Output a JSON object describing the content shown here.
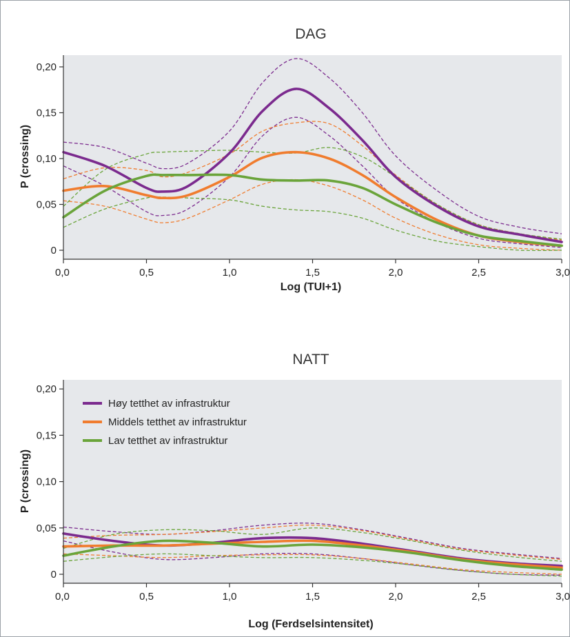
{
  "chart_data": [
    {
      "type": "line",
      "title": "DAG",
      "xlabel": "Log (TUI+1)",
      "ylabel": "P (crossing)",
      "xlim": [
        0,
        3
      ],
      "ylim": [
        0,
        0.21
      ],
      "xticks": [
        "0,0",
        "0,5",
        "1,0",
        "1,5",
        "2,0",
        "2,5",
        "3,0"
      ],
      "yticks": [
        "0",
        "0,05",
        "0,10",
        "0,15",
        "0,20"
      ],
      "grid": false,
      "background": "#e6e8eb",
      "series": [
        {
          "name": "Høy tetthet av infrastruktur",
          "color": "#7b2a8e",
          "x": [
            0.0,
            0.25,
            0.5,
            0.6,
            0.75,
            1.0,
            1.2,
            1.4,
            1.6,
            1.8,
            2.0,
            2.25,
            2.5,
            2.75,
            3.0
          ],
          "y": [
            0.107,
            0.092,
            0.068,
            0.064,
            0.07,
            0.106,
            0.152,
            0.176,
            0.155,
            0.12,
            0.08,
            0.048,
            0.026,
            0.017,
            0.009
          ],
          "lower": [
            0.092,
            0.07,
            0.042,
            0.038,
            0.045,
            0.08,
            0.125,
            0.145,
            0.125,
            0.092,
            0.057,
            0.03,
            0.013,
            0.007,
            0.003
          ],
          "upper": [
            0.118,
            0.112,
            0.095,
            0.089,
            0.095,
            0.13,
            0.183,
            0.209,
            0.188,
            0.15,
            0.103,
            0.065,
            0.037,
            0.025,
            0.018
          ]
        },
        {
          "name": "Middels tetthet av infrastruktur",
          "color": "#f07c2e",
          "x": [
            0.0,
            0.25,
            0.5,
            0.6,
            0.75,
            1.0,
            1.2,
            1.4,
            1.6,
            1.8,
            2.0,
            2.25,
            2.5,
            2.75,
            3.0
          ],
          "y": [
            0.065,
            0.07,
            0.06,
            0.057,
            0.06,
            0.08,
            0.101,
            0.107,
            0.1,
            0.082,
            0.058,
            0.033,
            0.016,
            0.009,
            0.005
          ],
          "lower": [
            0.054,
            0.048,
            0.034,
            0.03,
            0.035,
            0.055,
            0.072,
            0.077,
            0.07,
            0.055,
            0.035,
            0.017,
            0.006,
            0.002,
            0.0
          ],
          "upper": [
            0.078,
            0.09,
            0.087,
            0.08,
            0.085,
            0.105,
            0.13,
            0.139,
            0.138,
            0.114,
            0.082,
            0.05,
            0.028,
            0.018,
            0.011
          ]
        },
        {
          "name": "Lav tetthet av infrastruktur",
          "color": "#6aa43a",
          "x": [
            0.0,
            0.25,
            0.5,
            0.6,
            0.75,
            1.0,
            1.2,
            1.4,
            1.6,
            1.8,
            2.0,
            2.25,
            2.5,
            2.75,
            3.0
          ],
          "y": [
            0.036,
            0.065,
            0.081,
            0.082,
            0.082,
            0.082,
            0.077,
            0.076,
            0.076,
            0.068,
            0.05,
            0.03,
            0.016,
            0.01,
            0.005
          ],
          "lower": [
            0.025,
            0.045,
            0.057,
            0.058,
            0.057,
            0.055,
            0.048,
            0.044,
            0.042,
            0.035,
            0.022,
            0.01,
            0.004,
            0.0,
            0.0
          ],
          "upper": [
            0.048,
            0.088,
            0.105,
            0.107,
            0.108,
            0.109,
            0.107,
            0.106,
            0.112,
            0.102,
            0.08,
            0.05,
            0.028,
            0.018,
            0.012
          ]
        }
      ]
    },
    {
      "type": "line",
      "title": "NATT",
      "xlabel": "Log (Ferdselsintensitet)",
      "ylabel": "P (crossing)",
      "xlim": [
        0,
        3
      ],
      "ylim": [
        0,
        0.21
      ],
      "xticks": [
        "0,0",
        "0,5",
        "1,0",
        "1,5",
        "2,0",
        "2,5",
        "3,0"
      ],
      "yticks": [
        "0",
        "0,05",
        "0,10",
        "0,15",
        "0,20"
      ],
      "grid": false,
      "background": "#e6e8eb",
      "legend": "top-left",
      "series": [
        {
          "name": "Høy tetthet av infrastruktur",
          "color": "#7b2a8e",
          "x": [
            0.0,
            0.3,
            0.6,
            0.9,
            1.2,
            1.5,
            1.8,
            2.1,
            2.4,
            2.7,
            3.0
          ],
          "y": [
            0.044,
            0.036,
            0.031,
            0.034,
            0.039,
            0.039,
            0.033,
            0.025,
            0.017,
            0.012,
            0.009
          ],
          "lower": [
            0.036,
            0.024,
            0.016,
            0.018,
            0.022,
            0.022,
            0.017,
            0.01,
            0.004,
            0.0,
            -0.001
          ],
          "upper": [
            0.051,
            0.046,
            0.043,
            0.047,
            0.053,
            0.055,
            0.048,
            0.038,
            0.028,
            0.022,
            0.017
          ]
        },
        {
          "name": "Middels tetthet av infrastruktur",
          "color": "#f07c2e",
          "x": [
            0.0,
            0.3,
            0.6,
            0.9,
            1.2,
            1.5,
            1.8,
            2.1,
            2.4,
            2.7,
            3.0
          ],
          "y": [
            0.03,
            0.031,
            0.031,
            0.033,
            0.035,
            0.036,
            0.031,
            0.024,
            0.016,
            0.011,
            0.007
          ],
          "lower": [
            0.022,
            0.02,
            0.018,
            0.02,
            0.021,
            0.021,
            0.017,
            0.011,
            0.005,
            0.002,
            0.0
          ],
          "upper": [
            0.039,
            0.042,
            0.043,
            0.046,
            0.05,
            0.053,
            0.047,
            0.037,
            0.027,
            0.021,
            0.016
          ]
        },
        {
          "name": "Lav tetthet av infrastruktur",
          "color": "#6aa43a",
          "x": [
            0.0,
            0.3,
            0.6,
            0.9,
            1.2,
            1.5,
            1.8,
            2.1,
            2.4,
            2.7,
            3.0
          ],
          "y": [
            0.02,
            0.03,
            0.036,
            0.034,
            0.03,
            0.032,
            0.029,
            0.023,
            0.015,
            0.009,
            0.005
          ],
          "lower": [
            0.014,
            0.019,
            0.022,
            0.02,
            0.018,
            0.018,
            0.015,
            0.01,
            0.004,
            0.0,
            -0.002
          ],
          "upper": [
            0.028,
            0.043,
            0.048,
            0.047,
            0.043,
            0.05,
            0.045,
            0.036,
            0.026,
            0.019,
            0.014
          ]
        }
      ]
    }
  ]
}
